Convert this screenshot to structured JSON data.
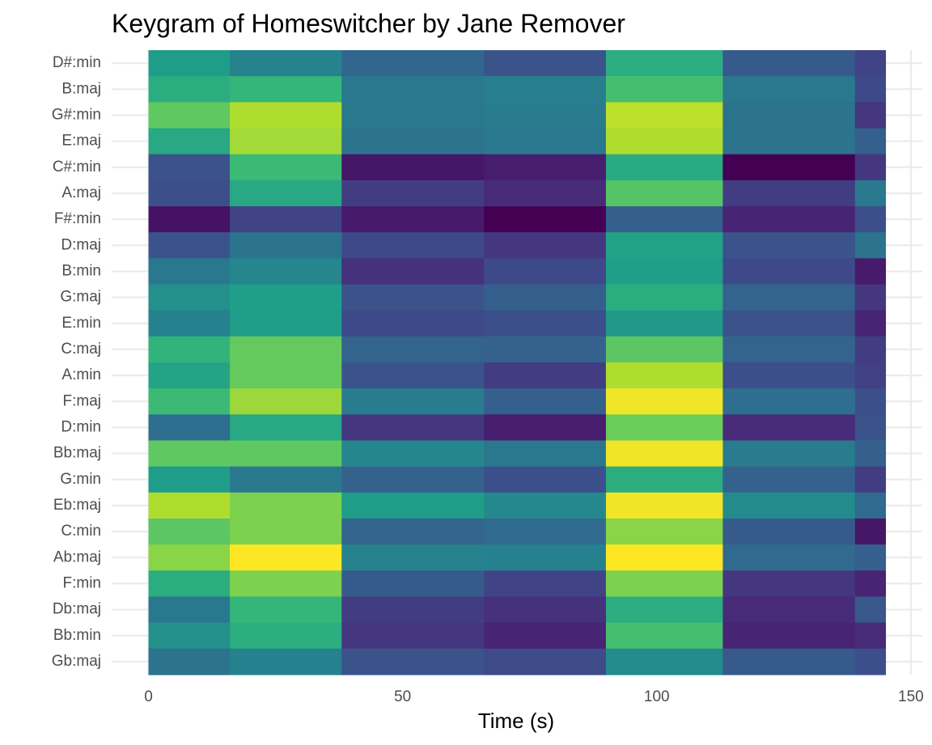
{
  "chart_data": {
    "type": "heatmap",
    "title": "Keygram of Homeswitcher by Jane Remover",
    "xlabel": "Time (s)",
    "ylabel": "",
    "xlim": [
      -7.25,
      152.25
    ],
    "x_ticks": [
      0,
      50,
      100,
      150
    ],
    "x_tick_labels": [
      "0",
      "50",
      "100",
      "150"
    ],
    "colormap": "viridis",
    "colormap_stops": [
      "#440154",
      "#482878",
      "#3e4a89",
      "#31688e",
      "#26828e",
      "#1f9e89",
      "#35b779",
      "#6ece58",
      "#b5de2b",
      "#fde725"
    ],
    "time_bins": [
      [
        0,
        16
      ],
      [
        16,
        38
      ],
      [
        38,
        66
      ],
      [
        66,
        90
      ],
      [
        90,
        113
      ],
      [
        113,
        139
      ],
      [
        139,
        145
      ]
    ],
    "keys": [
      "D#:min",
      "B:maj",
      "G#:min",
      "E:maj",
      "C#:min",
      "A:maj",
      "F#:min",
      "D:maj",
      "B:min",
      "G:maj",
      "E:min",
      "C:maj",
      "A:min",
      "F:maj",
      "D:min",
      "Bb:maj",
      "G:min",
      "Eb:maj",
      "C:min",
      "Ab:maj",
      "F:min",
      "Db:maj",
      "Bb:min",
      "Gb:maj"
    ],
    "values": [
      [
        0.55,
        0.45,
        0.33,
        0.26,
        0.62,
        0.28,
        0.2
      ],
      [
        0.62,
        0.66,
        0.4,
        0.43,
        0.7,
        0.4,
        0.22
      ],
      [
        0.75,
        0.88,
        0.4,
        0.42,
        0.9,
        0.38,
        0.16
      ],
      [
        0.6,
        0.86,
        0.38,
        0.4,
        0.88,
        0.38,
        0.3
      ],
      [
        0.25,
        0.68,
        0.06,
        0.08,
        0.61,
        0.0,
        0.16
      ],
      [
        0.24,
        0.6,
        0.18,
        0.12,
        0.73,
        0.18,
        0.4
      ],
      [
        0.05,
        0.2,
        0.07,
        0.0,
        0.3,
        0.1,
        0.24
      ],
      [
        0.26,
        0.38,
        0.22,
        0.16,
        0.57,
        0.26,
        0.38
      ],
      [
        0.4,
        0.46,
        0.14,
        0.22,
        0.56,
        0.22,
        0.07
      ],
      [
        0.5,
        0.56,
        0.26,
        0.3,
        0.62,
        0.32,
        0.16
      ],
      [
        0.44,
        0.55,
        0.22,
        0.24,
        0.53,
        0.26,
        0.1
      ],
      [
        0.65,
        0.76,
        0.32,
        0.31,
        0.74,
        0.32,
        0.18
      ],
      [
        0.58,
        0.76,
        0.26,
        0.18,
        0.88,
        0.24,
        0.19
      ],
      [
        0.68,
        0.85,
        0.42,
        0.3,
        0.98,
        0.36,
        0.24
      ],
      [
        0.36,
        0.6,
        0.16,
        0.08,
        0.77,
        0.12,
        0.26
      ],
      [
        0.75,
        0.75,
        0.46,
        0.4,
        0.98,
        0.42,
        0.3
      ],
      [
        0.55,
        0.4,
        0.31,
        0.24,
        0.62,
        0.31,
        0.18
      ],
      [
        0.88,
        0.8,
        0.55,
        0.47,
        0.98,
        0.48,
        0.34
      ],
      [
        0.74,
        0.8,
        0.32,
        0.34,
        0.82,
        0.28,
        0.06
      ],
      [
        0.82,
        1.0,
        0.45,
        0.44,
        1.0,
        0.34,
        0.3
      ],
      [
        0.62,
        0.8,
        0.28,
        0.2,
        0.8,
        0.16,
        0.1
      ],
      [
        0.4,
        0.66,
        0.18,
        0.14,
        0.62,
        0.12,
        0.27
      ],
      [
        0.5,
        0.62,
        0.16,
        0.1,
        0.7,
        0.1,
        0.12
      ],
      [
        0.38,
        0.44,
        0.26,
        0.23,
        0.48,
        0.28,
        0.24
      ]
    ]
  }
}
